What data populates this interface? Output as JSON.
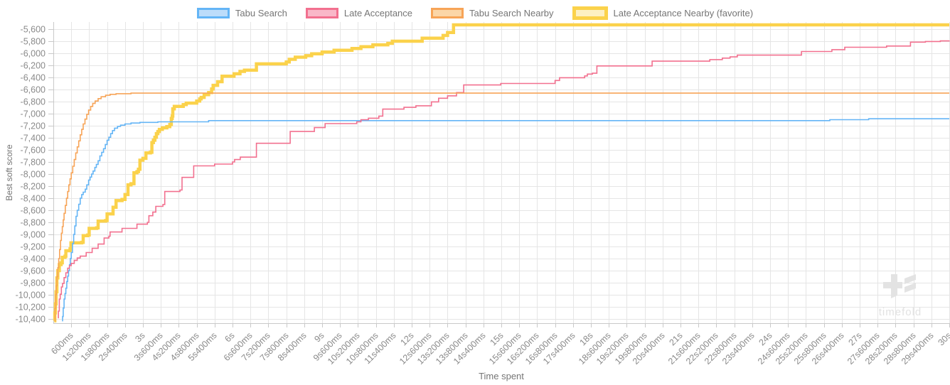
{
  "watermark": {
    "text": "timefold"
  },
  "chart_data": {
    "type": "line",
    "step_mode": "after",
    "title": "",
    "xlabel": "Time spent",
    "ylabel": "Best soft score",
    "grid": true,
    "legend_position": "top",
    "x_range_ms": [
      0,
      30000
    ],
    "x_tick_interval_ms": 600,
    "ylim": [
      -10470,
      -5480
    ],
    "y_tick_interval": 200,
    "x_tick_labels": [
      "600ms",
      "1s200ms",
      "1s800ms",
      "2s400ms",
      "3s",
      "3s600ms",
      "4s200ms",
      "4s800ms",
      "5s400ms",
      "6s",
      "6s600ms",
      "7s200ms",
      "7s800ms",
      "8s400ms",
      "9s",
      "9s600ms",
      "10s200ms",
      "10s800ms",
      "11s400ms",
      "12s",
      "12s600ms",
      "13s200ms",
      "13s800ms",
      "14s400ms",
      "15s",
      "15s600ms",
      "16s200ms",
      "16s800ms",
      "17s400ms",
      "18s",
      "18s600ms",
      "19s200ms",
      "19s800ms",
      "20s400ms",
      "21s",
      "21s600ms",
      "22s200ms",
      "22s800ms",
      "23s400ms",
      "24s",
      "24s600ms",
      "25s200ms",
      "25s800ms",
      "26s400ms",
      "27s",
      "27s600ms",
      "28s200ms",
      "28s800ms",
      "29s400ms",
      "30s"
    ],
    "y_tick_labels": [
      "-5,600",
      "-5,800",
      "-6,000",
      "-6,200",
      "-6,400",
      "-6,600",
      "-6,800",
      "-7,000",
      "-7,200",
      "-7,400",
      "-7,600",
      "-7,800",
      "-8,000",
      "-8,200",
      "-8,400",
      "-8,600",
      "-8,800",
      "-9,000",
      "-9,200",
      "-9,400",
      "-9,600",
      "-9,800",
      "-10,000",
      "-10,200",
      "-10,400"
    ],
    "y_tick_values": [
      -5600,
      -5800,
      -6000,
      -6200,
      -6400,
      -6600,
      -6800,
      -7000,
      -7200,
      -7400,
      -7600,
      -7800,
      -8000,
      -8200,
      -8400,
      -8600,
      -8800,
      -9000,
      -9200,
      -9400,
      -9600,
      -9800,
      -10000,
      -10200,
      -10400
    ],
    "series": [
      {
        "name": "Tabu Search",
        "color": "#64b5f6",
        "legend_fill": "#bcdcfa",
        "line_width": 1.6,
        "favorite": false,
        "points": [
          [
            290,
            -10430
          ],
          [
            310,
            -10360
          ],
          [
            330,
            -10220
          ],
          [
            360,
            -10070
          ],
          [
            390,
            -9980
          ],
          [
            420,
            -9890
          ],
          [
            450,
            -9780
          ],
          [
            480,
            -9690
          ],
          [
            510,
            -9600
          ],
          [
            540,
            -9500
          ],
          [
            570,
            -9400
          ],
          [
            600,
            -9300
          ],
          [
            640,
            -9150
          ],
          [
            680,
            -9000
          ],
          [
            720,
            -8860
          ],
          [
            760,
            -8700
          ],
          [
            800,
            -8600
          ],
          [
            850,
            -8500
          ],
          [
            900,
            -8400
          ],
          [
            950,
            -8340
          ],
          [
            1000,
            -8300
          ],
          [
            1070,
            -8250
          ],
          [
            1120,
            -8180
          ],
          [
            1180,
            -8100
          ],
          [
            1230,
            -8050
          ],
          [
            1280,
            -8000
          ],
          [
            1330,
            -7950
          ],
          [
            1390,
            -7890
          ],
          [
            1440,
            -7840
          ],
          [
            1500,
            -7780
          ],
          [
            1560,
            -7700
          ],
          [
            1620,
            -7640
          ],
          [
            1680,
            -7580
          ],
          [
            1740,
            -7510
          ],
          [
            1800,
            -7440
          ],
          [
            1860,
            -7390
          ],
          [
            1920,
            -7330
          ],
          [
            1980,
            -7280
          ],
          [
            2050,
            -7240
          ],
          [
            2150,
            -7210
          ],
          [
            2250,
            -7190
          ],
          [
            2400,
            -7170
          ],
          [
            2600,
            -7155
          ],
          [
            2900,
            -7145
          ],
          [
            3500,
            -7135
          ],
          [
            5200,
            -7115
          ],
          [
            26000,
            -7100
          ],
          [
            27300,
            -7085
          ],
          [
            30000,
            -7085
          ]
        ]
      },
      {
        "name": "Late Acceptance",
        "color": "#f2708f",
        "legend_fill": "#f9b7c8",
        "line_width": 1.6,
        "favorite": false,
        "points": [
          [
            150,
            -10380
          ],
          [
            170,
            -10270
          ],
          [
            200,
            -10070
          ],
          [
            230,
            -9990
          ],
          [
            270,
            -9870
          ],
          [
            310,
            -9810
          ],
          [
            360,
            -9715
          ],
          [
            420,
            -9635
          ],
          [
            480,
            -9560
          ],
          [
            540,
            -9515
          ],
          [
            600,
            -9480
          ],
          [
            700,
            -9430
          ],
          [
            800,
            -9390
          ],
          [
            900,
            -9360
          ],
          [
            1100,
            -9300
          ],
          [
            1300,
            -9230
          ],
          [
            1500,
            -9160
          ],
          [
            1700,
            -9060
          ],
          [
            1860,
            -9030
          ],
          [
            1900,
            -8960
          ],
          [
            2300,
            -8900
          ],
          [
            2800,
            -8830
          ],
          [
            3150,
            -8800
          ],
          [
            3200,
            -8690
          ],
          [
            3330,
            -8630
          ],
          [
            3430,
            -8535
          ],
          [
            3670,
            -8505
          ],
          [
            3730,
            -8290
          ],
          [
            4240,
            -8265
          ],
          [
            4310,
            -8055
          ],
          [
            4700,
            -7865
          ],
          [
            5400,
            -7835
          ],
          [
            6000,
            -7800
          ],
          [
            6070,
            -7760
          ],
          [
            6260,
            -7720
          ],
          [
            6800,
            -7490
          ],
          [
            7930,
            -7295
          ],
          [
            8740,
            -7230
          ],
          [
            9100,
            -7165
          ],
          [
            10160,
            -7135
          ],
          [
            10300,
            -7100
          ],
          [
            10550,
            -7075
          ],
          [
            10900,
            -7040
          ],
          [
            11030,
            -6925
          ],
          [
            11740,
            -6895
          ],
          [
            12140,
            -6870
          ],
          [
            12660,
            -6805
          ],
          [
            12900,
            -6745
          ],
          [
            13200,
            -6705
          ],
          [
            13500,
            -6650
          ],
          [
            13740,
            -6525
          ],
          [
            14980,
            -6500
          ],
          [
            16800,
            -6450
          ],
          [
            16950,
            -6405
          ],
          [
            17790,
            -6375
          ],
          [
            17880,
            -6345
          ],
          [
            18050,
            -6330
          ],
          [
            18200,
            -6210
          ],
          [
            20050,
            -6130
          ],
          [
            21980,
            -6105
          ],
          [
            22400,
            -6080
          ],
          [
            22660,
            -6060
          ],
          [
            22900,
            -6030
          ],
          [
            25050,
            -5970
          ],
          [
            26070,
            -5940
          ],
          [
            26500,
            -5900
          ],
          [
            27900,
            -5880
          ],
          [
            28700,
            -5815
          ],
          [
            29200,
            -5805
          ],
          [
            29700,
            -5795
          ],
          [
            30000,
            -5790
          ]
        ]
      },
      {
        "name": "Tabu Search Nearby",
        "color": "#f7a457",
        "legend_fill": "#fbd6a7",
        "line_width": 1.6,
        "favorite": false,
        "points": [
          [
            40,
            -10430
          ],
          [
            60,
            -10220
          ],
          [
            80,
            -10000
          ],
          [
            100,
            -9850
          ],
          [
            120,
            -9700
          ],
          [
            150,
            -9550
          ],
          [
            180,
            -9400
          ],
          [
            210,
            -9250
          ],
          [
            240,
            -9100
          ],
          [
            270,
            -8980
          ],
          [
            300,
            -8870
          ],
          [
            330,
            -8760
          ],
          [
            360,
            -8650
          ],
          [
            400,
            -8520
          ],
          [
            440,
            -8400
          ],
          [
            480,
            -8290
          ],
          [
            520,
            -8180
          ],
          [
            560,
            -8080
          ],
          [
            600,
            -7980
          ],
          [
            650,
            -7870
          ],
          [
            700,
            -7760
          ],
          [
            750,
            -7650
          ],
          [
            800,
            -7550
          ],
          [
            850,
            -7450
          ],
          [
            900,
            -7350
          ],
          [
            950,
            -7260
          ],
          [
            1000,
            -7170
          ],
          [
            1060,
            -7090
          ],
          [
            1120,
            -7010
          ],
          [
            1180,
            -6940
          ],
          [
            1250,
            -6880
          ],
          [
            1320,
            -6830
          ],
          [
            1400,
            -6790
          ],
          [
            1500,
            -6750
          ],
          [
            1600,
            -6720
          ],
          [
            1750,
            -6695
          ],
          [
            1900,
            -6680
          ],
          [
            2100,
            -6670
          ],
          [
            2600,
            -6660
          ],
          [
            30000,
            -6660
          ]
        ]
      },
      {
        "name": "Late Acceptance Nearby (favorite)",
        "color": "#fbd24b",
        "legend_fill": "#fdf0c2",
        "line_width": 4.5,
        "favorite": true,
        "points": [
          [
            30,
            -10430
          ],
          [
            50,
            -10300
          ],
          [
            70,
            -10150
          ],
          [
            90,
            -9950
          ],
          [
            120,
            -9720
          ],
          [
            150,
            -9600
          ],
          [
            200,
            -9500
          ],
          [
            260,
            -9470
          ],
          [
            300,
            -9380
          ],
          [
            390,
            -9360
          ],
          [
            420,
            -9270
          ],
          [
            560,
            -9240
          ],
          [
            590,
            -9140
          ],
          [
            950,
            -9130
          ],
          [
            1000,
            -9020
          ],
          [
            1150,
            -9010
          ],
          [
            1200,
            -8900
          ],
          [
            1450,
            -8890
          ],
          [
            1500,
            -8780
          ],
          [
            1750,
            -8770
          ],
          [
            1800,
            -8660
          ],
          [
            2000,
            -8550
          ],
          [
            2100,
            -8440
          ],
          [
            2300,
            -8420
          ],
          [
            2400,
            -8340
          ],
          [
            2500,
            -8180
          ],
          [
            2600,
            -8160
          ],
          [
            2700,
            -7980
          ],
          [
            2800,
            -7960
          ],
          [
            2850,
            -7920
          ],
          [
            2900,
            -7770
          ],
          [
            3000,
            -7740
          ],
          [
            3100,
            -7650
          ],
          [
            3250,
            -7640
          ],
          [
            3300,
            -7480
          ],
          [
            3350,
            -7440
          ],
          [
            3400,
            -7390
          ],
          [
            3450,
            -7330
          ],
          [
            3500,
            -7295
          ],
          [
            3550,
            -7260
          ],
          [
            3650,
            -7235
          ],
          [
            3800,
            -7215
          ],
          [
            3900,
            -7180
          ],
          [
            3950,
            -7080
          ],
          [
            3980,
            -7040
          ],
          [
            4000,
            -6920
          ],
          [
            4050,
            -6880
          ],
          [
            4350,
            -6850
          ],
          [
            4450,
            -6825
          ],
          [
            4800,
            -6790
          ],
          [
            4900,
            -6755
          ],
          [
            4950,
            -6730
          ],
          [
            5050,
            -6685
          ],
          [
            5200,
            -6650
          ],
          [
            5300,
            -6590
          ],
          [
            5350,
            -6530
          ],
          [
            5500,
            -6470
          ],
          [
            5650,
            -6380
          ],
          [
            6050,
            -6340
          ],
          [
            6250,
            -6300
          ],
          [
            6400,
            -6280
          ],
          [
            6800,
            -6175
          ],
          [
            7800,
            -6145
          ],
          [
            7900,
            -6100
          ],
          [
            8100,
            -6065
          ],
          [
            8450,
            -6040
          ],
          [
            8650,
            -6010
          ],
          [
            9000,
            -5980
          ],
          [
            9400,
            -5950
          ],
          [
            10000,
            -5920
          ],
          [
            10300,
            -5890
          ],
          [
            10700,
            -5860
          ],
          [
            11200,
            -5835
          ],
          [
            11350,
            -5800
          ],
          [
            12350,
            -5750
          ],
          [
            13050,
            -5705
          ],
          [
            13200,
            -5655
          ],
          [
            13400,
            -5530
          ],
          [
            30000,
            -5530
          ]
        ]
      }
    ],
    "colors": {
      "grid": "#e5e5e5",
      "axis": "#c9c9c9",
      "tick_text": "#8a8a8a",
      "axis_title_text": "#757575",
      "legend_text": "#757575",
      "watermark": "#e3e3e3"
    }
  }
}
